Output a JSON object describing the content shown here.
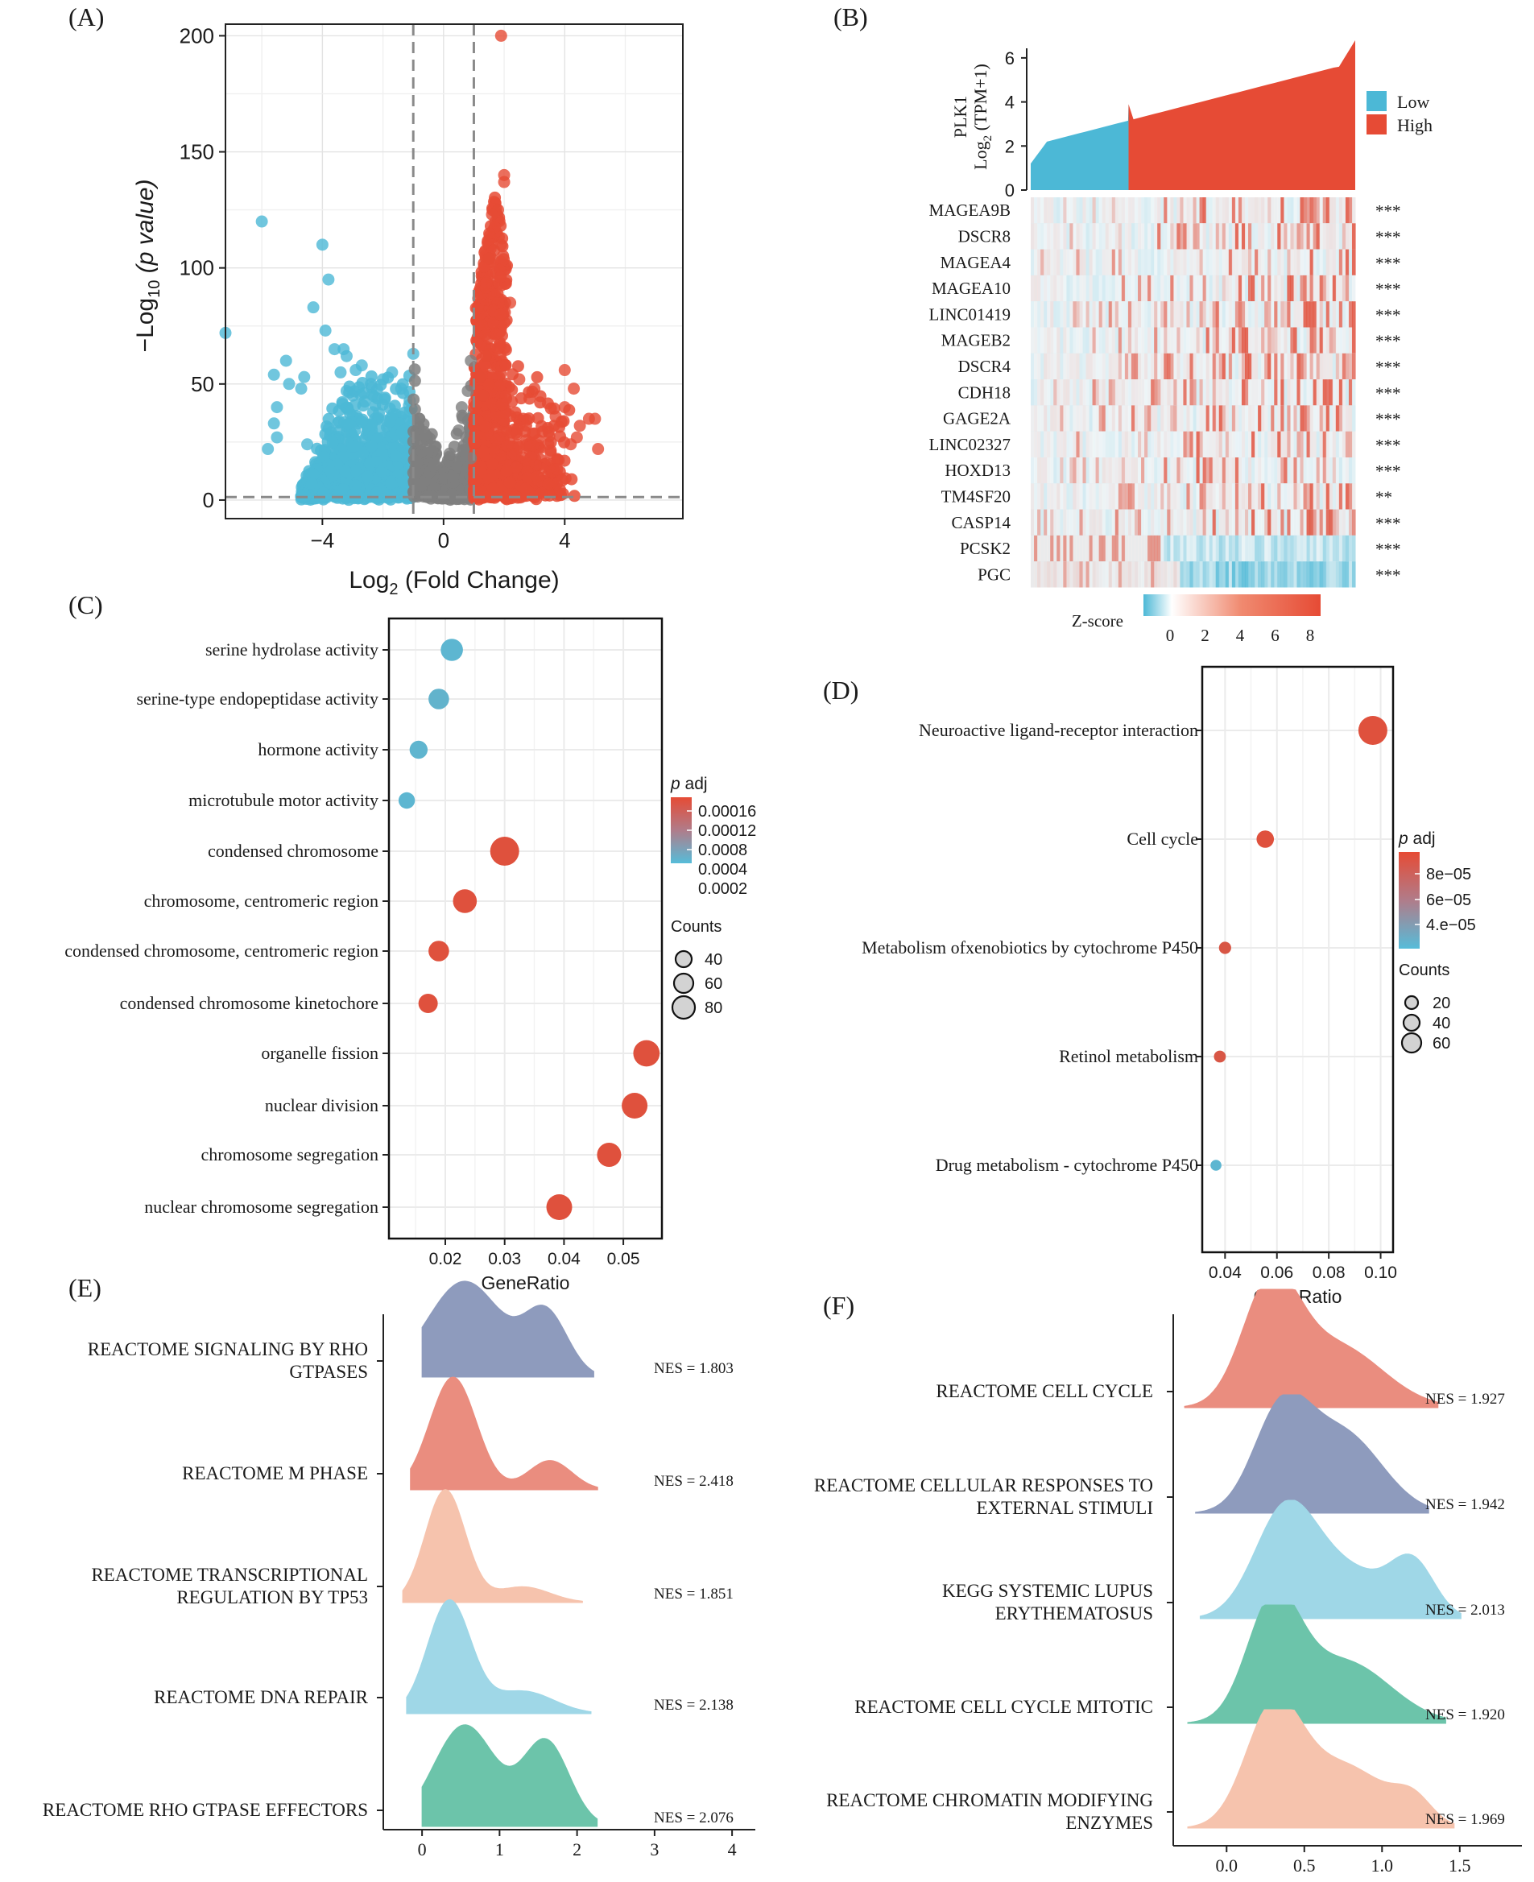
{
  "chart_data": [
    {
      "panel": "(A)",
      "type": "scatter",
      "title": "",
      "xlabel": "Log",
      "xlabel_sub": "2",
      "xlabel_rest": " (Fold Change)",
      "ylabel": "−Log",
      "ylabel_sub": "10",
      "ylabel_rest": "(p value)",
      "xlim": [
        -7.2,
        7.9
      ],
      "ylim": [
        -8,
        205
      ],
      "xticks": [
        -4,
        0,
        4
      ],
      "xtick_labels": [
        "−4",
        "0",
        "4"
      ],
      "yticks": [
        0,
        50,
        100,
        150,
        200
      ],
      "ytick_labels": [
        "0",
        "50",
        "100",
        "150",
        "200"
      ],
      "thresholds": {
        "log2fc": [
          -1,
          1
        ],
        "neglog10p": 1.3
      },
      "colors": {
        "down": "#4cb8d6",
        "ns": "#7f7f7f",
        "up": "#e64b35"
      },
      "series": [
        {
          "name": "Down",
          "points": [
            [
              -7.2,
              72
            ],
            [
              -6,
              120
            ],
            [
              -4.3,
              83
            ],
            [
              -4,
              110
            ],
            [
              -3.9,
              73
            ],
            [
              -3.8,
              95
            ],
            [
              -3.6,
              65
            ],
            [
              -5.6,
              54
            ],
            [
              -5.5,
              40
            ],
            [
              -5.6,
              33
            ],
            [
              -5.8,
              22
            ],
            [
              -5.2,
              60
            ],
            [
              -5.1,
              50
            ],
            [
              -4.7,
              48
            ],
            [
              -4.6,
              53
            ],
            [
              -4.5,
              24
            ],
            [
              -5.5,
              27
            ],
            [
              -3.3,
              65
            ],
            [
              -3.2,
              62
            ],
            [
              -3.4,
              55
            ],
            [
              -2.9,
              56
            ],
            [
              -3.2,
              47
            ],
            [
              -2.7,
              58
            ],
            [
              -2.4,
              50
            ],
            [
              -3.0,
              45
            ],
            [
              -1.0,
              63
            ],
            [
              -1.7,
              55
            ],
            [
              -2.0,
              52
            ],
            [
              -1.4,
              48
            ]
          ]
        },
        {
          "name": "Up",
          "points": [
            [
              1.9,
              200
            ],
            [
              2.0,
              140
            ],
            [
              2.0,
              137
            ],
            [
              1.8,
              125
            ],
            [
              1.6,
              123
            ],
            [
              1.9,
              110
            ],
            [
              1.5,
              104
            ],
            [
              2.2,
              85
            ],
            [
              2.5,
              52
            ],
            [
              3.0,
              48
            ],
            [
              3.7,
              36
            ],
            [
              4.0,
              40
            ],
            [
              4.0,
              56
            ],
            [
              4.2,
              24
            ],
            [
              4.3,
              48
            ],
            [
              4.5,
              32
            ],
            [
              4.8,
              35
            ],
            [
              5.0,
              35
            ],
            [
              5.1,
              22
            ],
            [
              4.4,
              27
            ],
            [
              1.2,
              53
            ],
            [
              1.4,
              62
            ],
            [
              1.3,
              45
            ]
          ]
        },
        {
          "name": "NS",
          "points": [
            [
              -0.8,
              35
            ],
            [
              0.2,
              20
            ],
            [
              0.5,
              30
            ],
            [
              0.8,
              47
            ],
            [
              0.9,
              60
            ],
            [
              -0.3,
              15
            ],
            [
              0.6,
              40
            ],
            [
              -0.6,
              28
            ],
            [
              0.3,
              10
            ],
            [
              0.9,
              18
            ]
          ]
        }
      ],
      "clouds": [
        {
          "name": "Down-dense",
          "x_range": [
            -4.8,
            -1.0
          ],
          "y_top": 52
        },
        {
          "name": "Up-dense",
          "x_range": [
            1.0,
            4.5
          ],
          "y_top": 60
        }
      ]
    },
    {
      "panel": "(B)",
      "type": "heatmap",
      "top_ylabel": "PLK1",
      "top_ylabel2": "Log",
      "top_ylabel2_sub": "2",
      "top_ylabel2_rest": " (TPM+1)",
      "top_yticks": [
        0,
        2,
        4,
        6
      ],
      "top_ylim": [
        0,
        6.8
      ],
      "legend": [
        {
          "label": "Low",
          "color": "#4cb8d6"
        },
        {
          "label": "High",
          "color": "#e64b35"
        }
      ],
      "split_fraction": 0.5,
      "rows": [
        {
          "gene": "MAGEA9B",
          "sig": "***"
        },
        {
          "gene": "DSCR8",
          "sig": "***"
        },
        {
          "gene": "MAGEA4",
          "sig": "***"
        },
        {
          "gene": "MAGEA10",
          "sig": "***"
        },
        {
          "gene": "LINC01419",
          "sig": "***"
        },
        {
          "gene": "MAGEB2",
          "sig": "***"
        },
        {
          "gene": "DSCR4",
          "sig": "***"
        },
        {
          "gene": "CDH18",
          "sig": "***"
        },
        {
          "gene": "GAGE2A",
          "sig": "***"
        },
        {
          "gene": "LINC02327",
          "sig": "***"
        },
        {
          "gene": "HOXD13",
          "sig": "***"
        },
        {
          "gene": "TM4SF20",
          "sig": "**"
        },
        {
          "gene": "CASP14",
          "sig": "***"
        },
        {
          "gene": "PCSK2",
          "sig": "***"
        },
        {
          "gene": "PGC",
          "sig": "***"
        }
      ],
      "colorbar": {
        "title": "Z-score",
        "ticks": [
          "0",
          "2",
          "4",
          "6",
          "8"
        ]
      }
    },
    {
      "panel": "(C)",
      "type": "scatter",
      "xlabel": "GeneRatio",
      "xticks": [
        0.02,
        0.03,
        0.04,
        0.05
      ],
      "xtick_labels": [
        "0.02",
        "0.03",
        "0.04",
        "0.05"
      ],
      "xlim": [
        0.0105,
        0.0565
      ],
      "categories": [
        "serine hydrolase activity",
        "serine-type endopeptidase activity",
        "hormone activity",
        "microtubule motor activity",
        "condensed chromosome",
        "chromosome, centromeric region",
        "condensed chromosome, centromeric region",
        "condensed chromosome kinetochore",
        "organelle fission",
        "nuclear division",
        "chromosome segregation",
        "nuclear chromosome segregation"
      ],
      "gene_ratio": [
        0.0211,
        0.0189,
        0.0155,
        0.0135,
        0.03,
        0.0233,
        0.0189,
        0.0171,
        0.0539,
        0.0519,
        0.0476,
        0.0392
      ],
      "counts": [
        49,
        44,
        36,
        31,
        70,
        54,
        44,
        40,
        62,
        60,
        55,
        60
      ],
      "color_level": [
        0.05,
        0.08,
        0.06,
        0.05,
        0.95,
        0.95,
        0.95,
        0.95,
        0.95,
        0.95,
        0.95,
        0.95
      ],
      "color_title": "p",
      "color_title_rest": " adj",
      "color_ticks": [
        "0.00016",
        "0.00012",
        "0.0008",
        "0.0004",
        "0.0002"
      ],
      "size_title": "Counts",
      "size_ticks": [
        "40",
        "60",
        "80"
      ]
    },
    {
      "panel": "(D)",
      "type": "scatter",
      "xlabel": "GeneRatio",
      "xticks": [
        0.04,
        0.06,
        0.08,
        0.1
      ],
      "xtick_labels": [
        "0.04",
        "0.06",
        "0.08",
        "0.10"
      ],
      "xlim": [
        0.0312,
        0.1048
      ],
      "categories": [
        "Neuroactive ligand-receptor interaction",
        "Cell cycle",
        "Metabolism ofxenobiotics by cytochrome P450",
        "Retinol metabolism",
        "Drug metabolism - cytochrome P450"
      ],
      "gene_ratio": [
        0.097,
        0.0555,
        0.04,
        0.038,
        0.0365
      ],
      "counts": [
        70,
        34,
        18,
        17,
        14
      ],
      "color_level": [
        0.95,
        0.95,
        0.9,
        0.9,
        0.05
      ],
      "color_title": "p",
      "color_title_rest": " adj",
      "color_ticks": [
        "8e−05",
        "6e−05",
        "4.e−05"
      ],
      "size_title": "Counts",
      "size_ticks": [
        "20",
        "40",
        "60"
      ]
    },
    {
      "panel": "(E)",
      "type": "area",
      "xticks": [
        0,
        1,
        2,
        3,
        4
      ],
      "xlim": [
        -0.5,
        4.3
      ],
      "pathways": [
        {
          "label": "REACTOME SIGNALING BY RHO\nGTPASES",
          "nes": "NES = 1.803",
          "color": "#8e9bbd",
          "peaks": [
            [
              0.55,
              0.48,
              0.85
            ],
            [
              1.6,
              0.28,
              0.55
            ]
          ]
        },
        {
          "label": "REACTOME M PHASE",
          "nes": "NES = 2.418",
          "color": "#ea8d7f",
          "peaks": [
            [
              0.4,
              0.3,
              1.0
            ],
            [
              1.65,
              0.28,
              0.26
            ]
          ]
        },
        {
          "label": "REACTOME TRANSCRIPTIONAL\nREGULATION BY TP53",
          "nes": "NES = 1.851",
          "color": "#f6c3ad",
          "peaks": [
            [
              0.3,
              0.26,
              1.0
            ],
            [
              1.3,
              0.35,
              0.14
            ]
          ]
        },
        {
          "label": "REACTOME DNA REPAIR",
          "nes": "NES = 2.138",
          "color": "#9fd7e7",
          "peaks": [
            [
              0.35,
              0.28,
              1.0
            ],
            [
              1.3,
              0.4,
              0.2
            ]
          ]
        },
        {
          "label": "REACTOME RHO GTPASE EFFECTORS",
          "nes": "NES = 2.076",
          "color": "#6cc4aa",
          "peaks": [
            [
              0.55,
              0.4,
              0.9
            ],
            [
              1.6,
              0.3,
              0.75
            ]
          ]
        }
      ]
    },
    {
      "panel": "(F)",
      "type": "area",
      "xticks": [
        0.0,
        0.5,
        1.0,
        1.5
      ],
      "xtick_labels": [
        "0.0",
        "0.5",
        "1.0",
        "1.5"
      ],
      "xlim": [
        -0.25,
        1.9
      ],
      "pathways": [
        {
          "label": "REACTOME CELL CYCLE",
          "nes": "NES = 1.927",
          "color": "#ea8d7f",
          "peaks": [
            [
              0.28,
              0.18,
              1.0
            ],
            [
              0.7,
              0.3,
              0.55
            ]
          ]
        },
        {
          "label": "REACTOME CELLULAR RESPONSES TO\nEXTERNAL STIMULI",
          "nes": "NES = 1.942",
          "color": "#8e9bbd",
          "peaks": [
            [
              0.35,
              0.18,
              0.85
            ],
            [
              0.75,
              0.25,
              0.7
            ]
          ]
        },
        {
          "label": "KEGG SYSTEMIC LUPUS\nERYTHEMATOSUS",
          "nes": "NES = 2.013",
          "color": "#9fd7e7",
          "peaks": [
            [
              0.38,
              0.2,
              0.95
            ],
            [
              0.8,
              0.25,
              0.4
            ],
            [
              1.2,
              0.14,
              0.45
            ]
          ]
        },
        {
          "label": "REACTOME CELL CYCLE MITOTIC",
          "nes": "NES = 1.920",
          "color": "#6cc4aa",
          "peaks": [
            [
              0.3,
              0.17,
              1.0
            ],
            [
              0.75,
              0.3,
              0.55
            ]
          ]
        },
        {
          "label": "REACTOME CHROMATIN MODIFYING\nENZYMES",
          "nes": "NES = 1.969",
          "color": "#f6c3ad",
          "peaks": [
            [
              0.3,
              0.18,
              1.0
            ],
            [
              0.75,
              0.28,
              0.55
            ],
            [
              1.2,
              0.12,
              0.2
            ]
          ]
        }
      ]
    }
  ]
}
